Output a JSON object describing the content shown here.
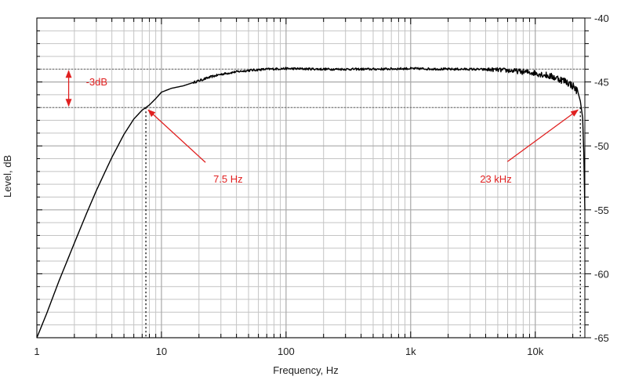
{
  "chart_data": {
    "type": "line",
    "title": "",
    "xlabel": "Frequency, Hz",
    "ylabel": "Level, dB",
    "x_scale": "log",
    "xlim": [
      1,
      25000
    ],
    "ylim": [
      -65,
      -40
    ],
    "x_ticks": [
      {
        "value": 1,
        "label": "1"
      },
      {
        "value": 10,
        "label": "10"
      },
      {
        "value": 100,
        "label": "100"
      },
      {
        "value": 1000,
        "label": "1k"
      },
      {
        "value": 10000,
        "label": "10k"
      }
    ],
    "y_ticks": [
      {
        "value": -40,
        "label": "-40"
      },
      {
        "value": -45,
        "label": "-45"
      },
      {
        "value": -50,
        "label": "-50"
      },
      {
        "value": -55,
        "label": "-55"
      },
      {
        "value": -60,
        "label": "-60"
      },
      {
        "value": -65,
        "label": "-65"
      }
    ],
    "y_axis_side": "right",
    "grid": true,
    "line_color": "#000000",
    "annotation_color": "#e02020",
    "series": [
      {
        "x": [
          1,
          1.2,
          1.5,
          2,
          2.5,
          3,
          3.5,
          4,
          5,
          6,
          7,
          7.5,
          8,
          9,
          10,
          12,
          15,
          20,
          25,
          30,
          40,
          50,
          70,
          100,
          200,
          500,
          1000,
          2000,
          3000,
          5000,
          7000,
          10000,
          12000,
          15000,
          18000,
          20000,
          22000,
          23000,
          24000,
          24500,
          25000
        ],
        "y": [
          -65,
          -63.1,
          -60.6,
          -57.6,
          -55.3,
          -53.5,
          -52.1,
          -50.9,
          -49.1,
          -47.9,
          -47.2,
          -47.0,
          -46.8,
          -46.3,
          -45.8,
          -45.5,
          -45.3,
          -44.9,
          -44.6,
          -44.4,
          -44.2,
          -44.1,
          -44.0,
          -43.95,
          -44.0,
          -44.0,
          -43.95,
          -44.0,
          -44.0,
          -44.05,
          -44.15,
          -44.3,
          -44.45,
          -44.7,
          -45.0,
          -45.3,
          -45.8,
          -46.5,
          -47.8,
          -50.5,
          -55
        ]
      }
    ],
    "reference_lines": [
      {
        "axis": "y",
        "value": -44
      },
      {
        "axis": "y",
        "value": -47
      },
      {
        "axis": "x",
        "value": 7.5
      },
      {
        "axis": "x",
        "value": 23000
      }
    ],
    "annotations": [
      {
        "text": "-3dB",
        "type": "bracket",
        "x": 1.8,
        "y_from": -44,
        "y_to": -47
      },
      {
        "text": "7.5 Hz",
        "arrow_to": {
          "x": 7.5,
          "y": -47
        }
      },
      {
        "text": "23 kHz",
        "arrow_to": {
          "x": 23000,
          "y": -47
        }
      }
    ]
  }
}
